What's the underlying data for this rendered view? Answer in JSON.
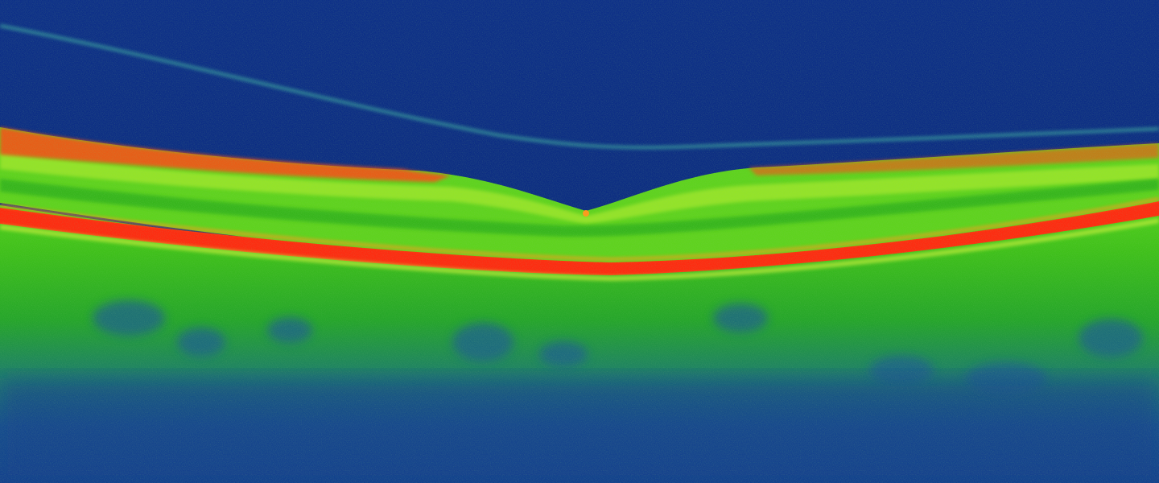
{
  "scan": {
    "palette": {
      "background": "#0b2a7e",
      "deep_blue": "#123a8c",
      "teal": "#1f7f8a",
      "green": "#3cc21a",
      "lime": "#8fe82a",
      "yellow_green": "#c9f03a",
      "orange": "#ff8a1a",
      "red": "#ff2a10",
      "vitreous_line": "#3aa3a0"
    }
  }
}
